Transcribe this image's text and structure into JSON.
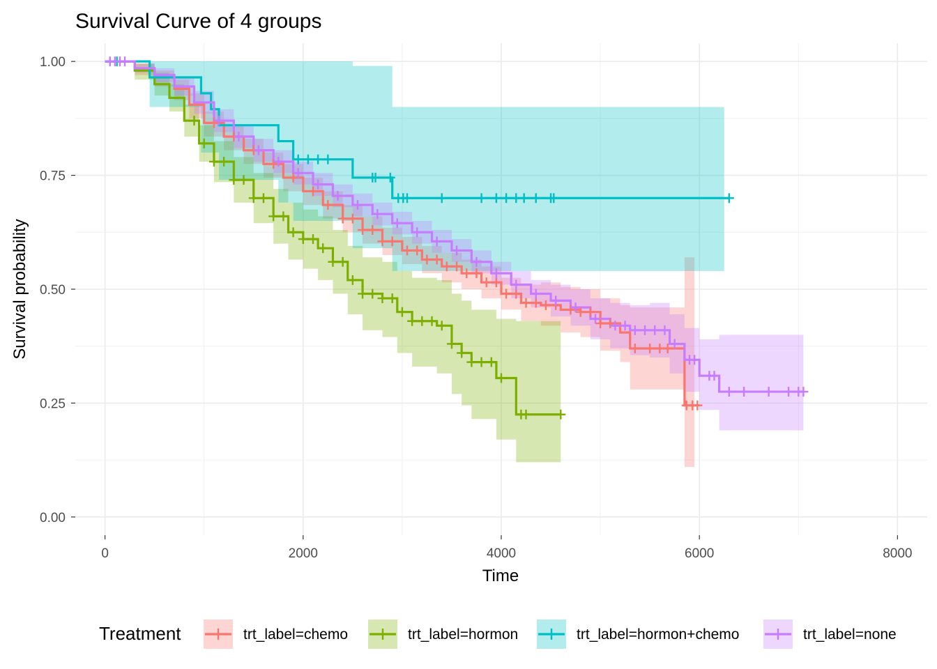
{
  "chart_data": {
    "type": "line",
    "subtype": "kaplan-meier step curves with confidence bands and censor marks",
    "title": "Survival Curve of 4 groups",
    "xlabel": "Time",
    "ylabel": "Survival probability",
    "xlim": [
      -300,
      8300
    ],
    "ylim": [
      -0.04,
      1.04
    ],
    "x_ticks": [
      0,
      2000,
      4000,
      6000,
      8000
    ],
    "y_ticks": [
      0.0,
      0.25,
      0.5,
      0.75,
      1.0
    ],
    "x_tick_labels": [
      "0",
      "2000",
      "4000",
      "6000",
      "8000"
    ],
    "y_tick_labels": [
      "0.00",
      "0.25",
      "0.50",
      "0.75",
      "1.00"
    ],
    "grid": true,
    "legend": {
      "title": "Treatment",
      "position": "bottom"
    },
    "series": [
      {
        "name": "trt_label=chemo",
        "color": "#F8766D",
        "steps": [
          [
            0,
            1.0
          ],
          [
            300,
            0.985
          ],
          [
            500,
            0.965
          ],
          [
            700,
            0.94
          ],
          [
            850,
            0.905
          ],
          [
            1000,
            0.865
          ],
          [
            1200,
            0.835
          ],
          [
            1400,
            0.805
          ],
          [
            1600,
            0.775
          ],
          [
            1800,
            0.745
          ],
          [
            2000,
            0.715
          ],
          [
            2200,
            0.685
          ],
          [
            2400,
            0.655
          ],
          [
            2600,
            0.63
          ],
          [
            2800,
            0.605
          ],
          [
            3000,
            0.585
          ],
          [
            3200,
            0.565
          ],
          [
            3400,
            0.55
          ],
          [
            3600,
            0.535
          ],
          [
            3800,
            0.515
          ],
          [
            4000,
            0.49
          ],
          [
            4200,
            0.47
          ],
          [
            4400,
            0.465
          ],
          [
            4600,
            0.455
          ],
          [
            4800,
            0.45
          ],
          [
            5000,
            0.425
          ],
          [
            5200,
            0.405
          ],
          [
            5300,
            0.37
          ],
          [
            5700,
            0.37
          ],
          [
            5850,
            0.245
          ],
          [
            6000,
            0.245
          ]
        ],
        "ci_steps": [
          [
            0,
            1.0,
            1.0
          ],
          [
            300,
            0.97,
            0.995
          ],
          [
            500,
            0.945,
            0.98
          ],
          [
            700,
            0.915,
            0.96
          ],
          [
            850,
            0.875,
            0.93
          ],
          [
            1000,
            0.835,
            0.89
          ],
          [
            1200,
            0.805,
            0.86
          ],
          [
            1400,
            0.775,
            0.83
          ],
          [
            1600,
            0.745,
            0.8
          ],
          [
            1800,
            0.715,
            0.775
          ],
          [
            2000,
            0.685,
            0.745
          ],
          [
            2200,
            0.655,
            0.715
          ],
          [
            2400,
            0.625,
            0.685
          ],
          [
            2600,
            0.6,
            0.66
          ],
          [
            2800,
            0.575,
            0.635
          ],
          [
            3000,
            0.555,
            0.615
          ],
          [
            3200,
            0.535,
            0.595
          ],
          [
            3400,
            0.515,
            0.58
          ],
          [
            3600,
            0.5,
            0.565
          ],
          [
            3800,
            0.48,
            0.55
          ],
          [
            4000,
            0.455,
            0.525
          ],
          [
            4200,
            0.43,
            0.51
          ],
          [
            4400,
            0.42,
            0.515
          ],
          [
            4600,
            0.405,
            0.505
          ],
          [
            4800,
            0.395,
            0.5
          ],
          [
            5000,
            0.365,
            0.48
          ],
          [
            5200,
            0.34,
            0.465
          ],
          [
            5300,
            0.28,
            0.46
          ],
          [
            5700,
            0.28,
            0.46
          ],
          [
            5850,
            0.11,
            0.57
          ],
          [
            5950,
            0.11,
            0.57
          ]
        ],
        "censor_x": [
          1100,
          1300,
          1500,
          1700,
          1900,
          2100,
          2250,
          2400,
          2500,
          2600,
          2700,
          2800,
          2900,
          3050,
          3150,
          3250,
          3350,
          3450,
          3550,
          3650,
          3750,
          3850,
          3950,
          4050,
          4150,
          4250,
          4350,
          4450,
          4550,
          4700,
          4800,
          4900,
          5000,
          5100,
          5350,
          5500,
          5600,
          5680,
          5870,
          5930,
          5980
        ]
      },
      {
        "name": "trt_label=hormon",
        "color": "#7CAE00",
        "steps": [
          [
            0,
            1.0
          ],
          [
            300,
            0.98
          ],
          [
            500,
            0.95
          ],
          [
            650,
            0.92
          ],
          [
            800,
            0.87
          ],
          [
            950,
            0.82
          ],
          [
            1100,
            0.78
          ],
          [
            1300,
            0.74
          ],
          [
            1500,
            0.7
          ],
          [
            1700,
            0.66
          ],
          [
            1850,
            0.625
          ],
          [
            2000,
            0.61
          ],
          [
            2150,
            0.59
          ],
          [
            2300,
            0.56
          ],
          [
            2450,
            0.52
          ],
          [
            2600,
            0.49
          ],
          [
            2800,
            0.48
          ],
          [
            2950,
            0.45
          ],
          [
            3100,
            0.43
          ],
          [
            3350,
            0.42
          ],
          [
            3500,
            0.38
          ],
          [
            3600,
            0.36
          ],
          [
            3700,
            0.34
          ],
          [
            3950,
            0.305
          ],
          [
            4150,
            0.225
          ],
          [
            4600,
            0.225
          ]
        ],
        "ci_steps": [
          [
            0,
            1.0,
            1.0
          ],
          [
            300,
            0.96,
            0.995
          ],
          [
            500,
            0.925,
            0.975
          ],
          [
            650,
            0.89,
            0.95
          ],
          [
            800,
            0.835,
            0.905
          ],
          [
            950,
            0.78,
            0.86
          ],
          [
            1100,
            0.735,
            0.825
          ],
          [
            1300,
            0.69,
            0.79
          ],
          [
            1500,
            0.645,
            0.755
          ],
          [
            1700,
            0.6,
            0.72
          ],
          [
            1850,
            0.565,
            0.69
          ],
          [
            2000,
            0.545,
            0.675
          ],
          [
            2150,
            0.52,
            0.66
          ],
          [
            2300,
            0.49,
            0.63
          ],
          [
            2450,
            0.445,
            0.595
          ],
          [
            2600,
            0.41,
            0.57
          ],
          [
            2800,
            0.395,
            0.56
          ],
          [
            2950,
            0.36,
            0.54
          ],
          [
            3100,
            0.33,
            0.525
          ],
          [
            3350,
            0.315,
            0.52
          ],
          [
            3500,
            0.27,
            0.49
          ],
          [
            3600,
            0.245,
            0.475
          ],
          [
            3700,
            0.215,
            0.455
          ],
          [
            3950,
            0.17,
            0.435
          ],
          [
            4150,
            0.12,
            0.43
          ],
          [
            4600,
            0.12,
            0.43
          ]
        ],
        "censor_x": [
          900,
          1000,
          1100,
          1200,
          1300,
          1400,
          1500,
          1600,
          1700,
          1800,
          1900,
          2000,
          2100,
          2200,
          2300,
          2400,
          2500,
          2600,
          2700,
          2800,
          2900,
          3000,
          3100,
          3200,
          3300,
          3400,
          3500,
          3600,
          3700,
          3800,
          3900,
          4000,
          4200,
          4250,
          4600
        ]
      },
      {
        "name": "trt_label=hormon+chemo",
        "color": "#00BFC4",
        "steps": [
          [
            0,
            1.0
          ],
          [
            450,
            0.965
          ],
          [
            970,
            0.93
          ],
          [
            1070,
            0.895
          ],
          [
            1150,
            0.86
          ],
          [
            1750,
            0.825
          ],
          [
            1900,
            0.785
          ],
          [
            2500,
            0.745
          ],
          [
            2900,
            0.7
          ],
          [
            6300,
            0.7
          ]
        ],
        "ci_steps": [
          [
            0,
            1.0,
            1.0
          ],
          [
            450,
            0.9,
            1.0
          ],
          [
            970,
            0.8,
            1.0
          ],
          [
            1150,
            0.74,
            1.0
          ],
          [
            1750,
            0.69,
            1.0
          ],
          [
            1900,
            0.65,
            1.0
          ],
          [
            2500,
            0.59,
            0.99
          ],
          [
            2900,
            0.54,
            0.9
          ],
          [
            6250,
            0.54,
            0.9
          ]
        ],
        "censor_x": [
          120,
          1950,
          2050,
          2150,
          2250,
          2700,
          2730,
          2880,
          2960,
          3010,
          3050,
          3400,
          3800,
          3950,
          4050,
          4150,
          4230,
          4350,
          4500,
          4530,
          6300
        ]
      },
      {
        "name": "trt_label=none",
        "color": "#C77CFF",
        "steps": [
          [
            0,
            1.0
          ],
          [
            300,
            0.985
          ],
          [
            500,
            0.97
          ],
          [
            700,
            0.945
          ],
          [
            900,
            0.91
          ],
          [
            1100,
            0.87
          ],
          [
            1300,
            0.835
          ],
          [
            1500,
            0.805
          ],
          [
            1700,
            0.78
          ],
          [
            1900,
            0.755
          ],
          [
            2100,
            0.73
          ],
          [
            2300,
            0.705
          ],
          [
            2500,
            0.685
          ],
          [
            2700,
            0.665
          ],
          [
            2900,
            0.645
          ],
          [
            3100,
            0.625
          ],
          [
            3300,
            0.605
          ],
          [
            3500,
            0.585
          ],
          [
            3700,
            0.56
          ],
          [
            3900,
            0.535
          ],
          [
            4100,
            0.51
          ],
          [
            4300,
            0.49
          ],
          [
            4500,
            0.475
          ],
          [
            4700,
            0.46
          ],
          [
            4900,
            0.435
          ],
          [
            5100,
            0.42
          ],
          [
            5300,
            0.41
          ],
          [
            5500,
            0.41
          ],
          [
            5700,
            0.38
          ],
          [
            5850,
            0.345
          ],
          [
            6000,
            0.31
          ],
          [
            6200,
            0.275
          ],
          [
            7050,
            0.275
          ]
        ],
        "ci_steps": [
          [
            0,
            1.0,
            1.0
          ],
          [
            300,
            0.975,
            0.995
          ],
          [
            500,
            0.955,
            0.985
          ],
          [
            700,
            0.925,
            0.965
          ],
          [
            900,
            0.885,
            0.935
          ],
          [
            1100,
            0.845,
            0.895
          ],
          [
            1300,
            0.81,
            0.86
          ],
          [
            1500,
            0.78,
            0.83
          ],
          [
            1700,
            0.755,
            0.805
          ],
          [
            1900,
            0.73,
            0.78
          ],
          [
            2100,
            0.705,
            0.755
          ],
          [
            2300,
            0.68,
            0.73
          ],
          [
            2500,
            0.66,
            0.71
          ],
          [
            2700,
            0.64,
            0.69
          ],
          [
            2900,
            0.62,
            0.67
          ],
          [
            3100,
            0.6,
            0.65
          ],
          [
            3300,
            0.58,
            0.63
          ],
          [
            3500,
            0.56,
            0.61
          ],
          [
            3700,
            0.535,
            0.585
          ],
          [
            3900,
            0.51,
            0.56
          ],
          [
            4100,
            0.48,
            0.54
          ],
          [
            4300,
            0.46,
            0.52
          ],
          [
            4500,
            0.44,
            0.51
          ],
          [
            4700,
            0.42,
            0.5
          ],
          [
            4900,
            0.39,
            0.48
          ],
          [
            5100,
            0.37,
            0.47
          ],
          [
            5300,
            0.355,
            0.465
          ],
          [
            5500,
            0.35,
            0.47
          ],
          [
            5700,
            0.315,
            0.445
          ],
          [
            5850,
            0.275,
            0.415
          ],
          [
            6000,
            0.235,
            0.39
          ],
          [
            6200,
            0.19,
            0.4
          ],
          [
            7050,
            0.19,
            0.4
          ]
        ],
        "censor_x": [
          50,
          100,
          150,
          200,
          1150,
          1350,
          1550,
          1750,
          1950,
          2150,
          2350,
          2550,
          2750,
          2950,
          3150,
          3350,
          3550,
          3750,
          3950,
          4150,
          4350,
          4550,
          4750,
          4950,
          5150,
          5250,
          5350,
          5450,
          5550,
          5650,
          5750,
          5900,
          5950,
          6100,
          6150,
          6300,
          6450,
          6700,
          6900,
          7000,
          7050
        ]
      }
    ]
  }
}
